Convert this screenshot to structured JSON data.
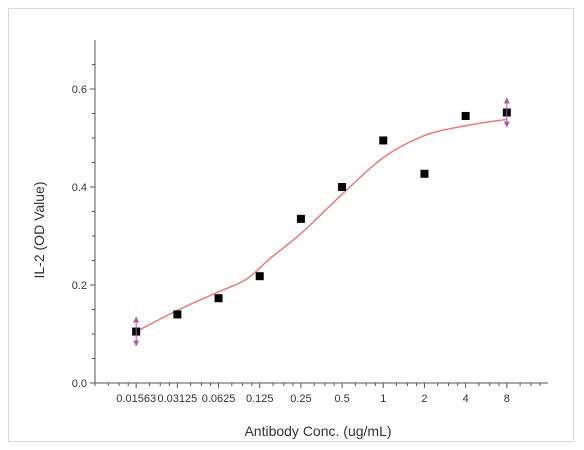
{
  "chart_data": {
    "type": "scatter",
    "title": "",
    "xlabel": "Antibody Conc. (ug/mL)",
    "ylabel": "IL-2 (OD Value)",
    "x_scale": "log2",
    "xlim": [
      0.0078125,
      16
    ],
    "ylim": [
      0,
      0.7
    ],
    "x_tick_values": [
      0.015625,
      0.03125,
      0.0625,
      0.125,
      0.25,
      0.5,
      1,
      2,
      4,
      8
    ],
    "x_tick_labels": [
      "0.01563",
      "0.03125",
      "0.0625",
      "0.125",
      "0.25",
      "0.5",
      "1",
      "2",
      "4",
      "8"
    ],
    "y_ticks": [
      0.0,
      0.2,
      0.4,
      0.6
    ],
    "y_tick_labels": [
      "0.0",
      "0.2",
      "0.4",
      "0.6"
    ],
    "grid": false,
    "series": [
      {
        "kind": "points",
        "marker": "square",
        "color": "#000000",
        "x": [
          0.015625,
          0.03125,
          0.0625,
          0.125,
          0.25,
          0.5,
          1,
          2,
          4,
          8
        ],
        "y": [
          0.105,
          0.14,
          0.173,
          0.218,
          0.335,
          0.4,
          0.495,
          0.427,
          0.545,
          0.552
        ]
      },
      {
        "kind": "fit-curve",
        "color": "#e87c7c",
        "x": [
          0.015625,
          0.03125,
          0.0625,
          0.1,
          0.15,
          0.25,
          0.5,
          1,
          2,
          4,
          8
        ],
        "y": [
          0.105,
          0.148,
          0.186,
          0.212,
          0.255,
          0.305,
          0.385,
          0.46,
          0.505,
          0.525,
          0.538
        ]
      }
    ],
    "end_markers": {
      "color": "#b05aa8",
      "points": [
        {
          "x": 0.015625,
          "y": 0.105
        },
        {
          "x": 8,
          "y": 0.552
        }
      ]
    },
    "colors": {
      "axis": "#555555",
      "text": "#333333",
      "frame": "#d9d9d9"
    }
  }
}
